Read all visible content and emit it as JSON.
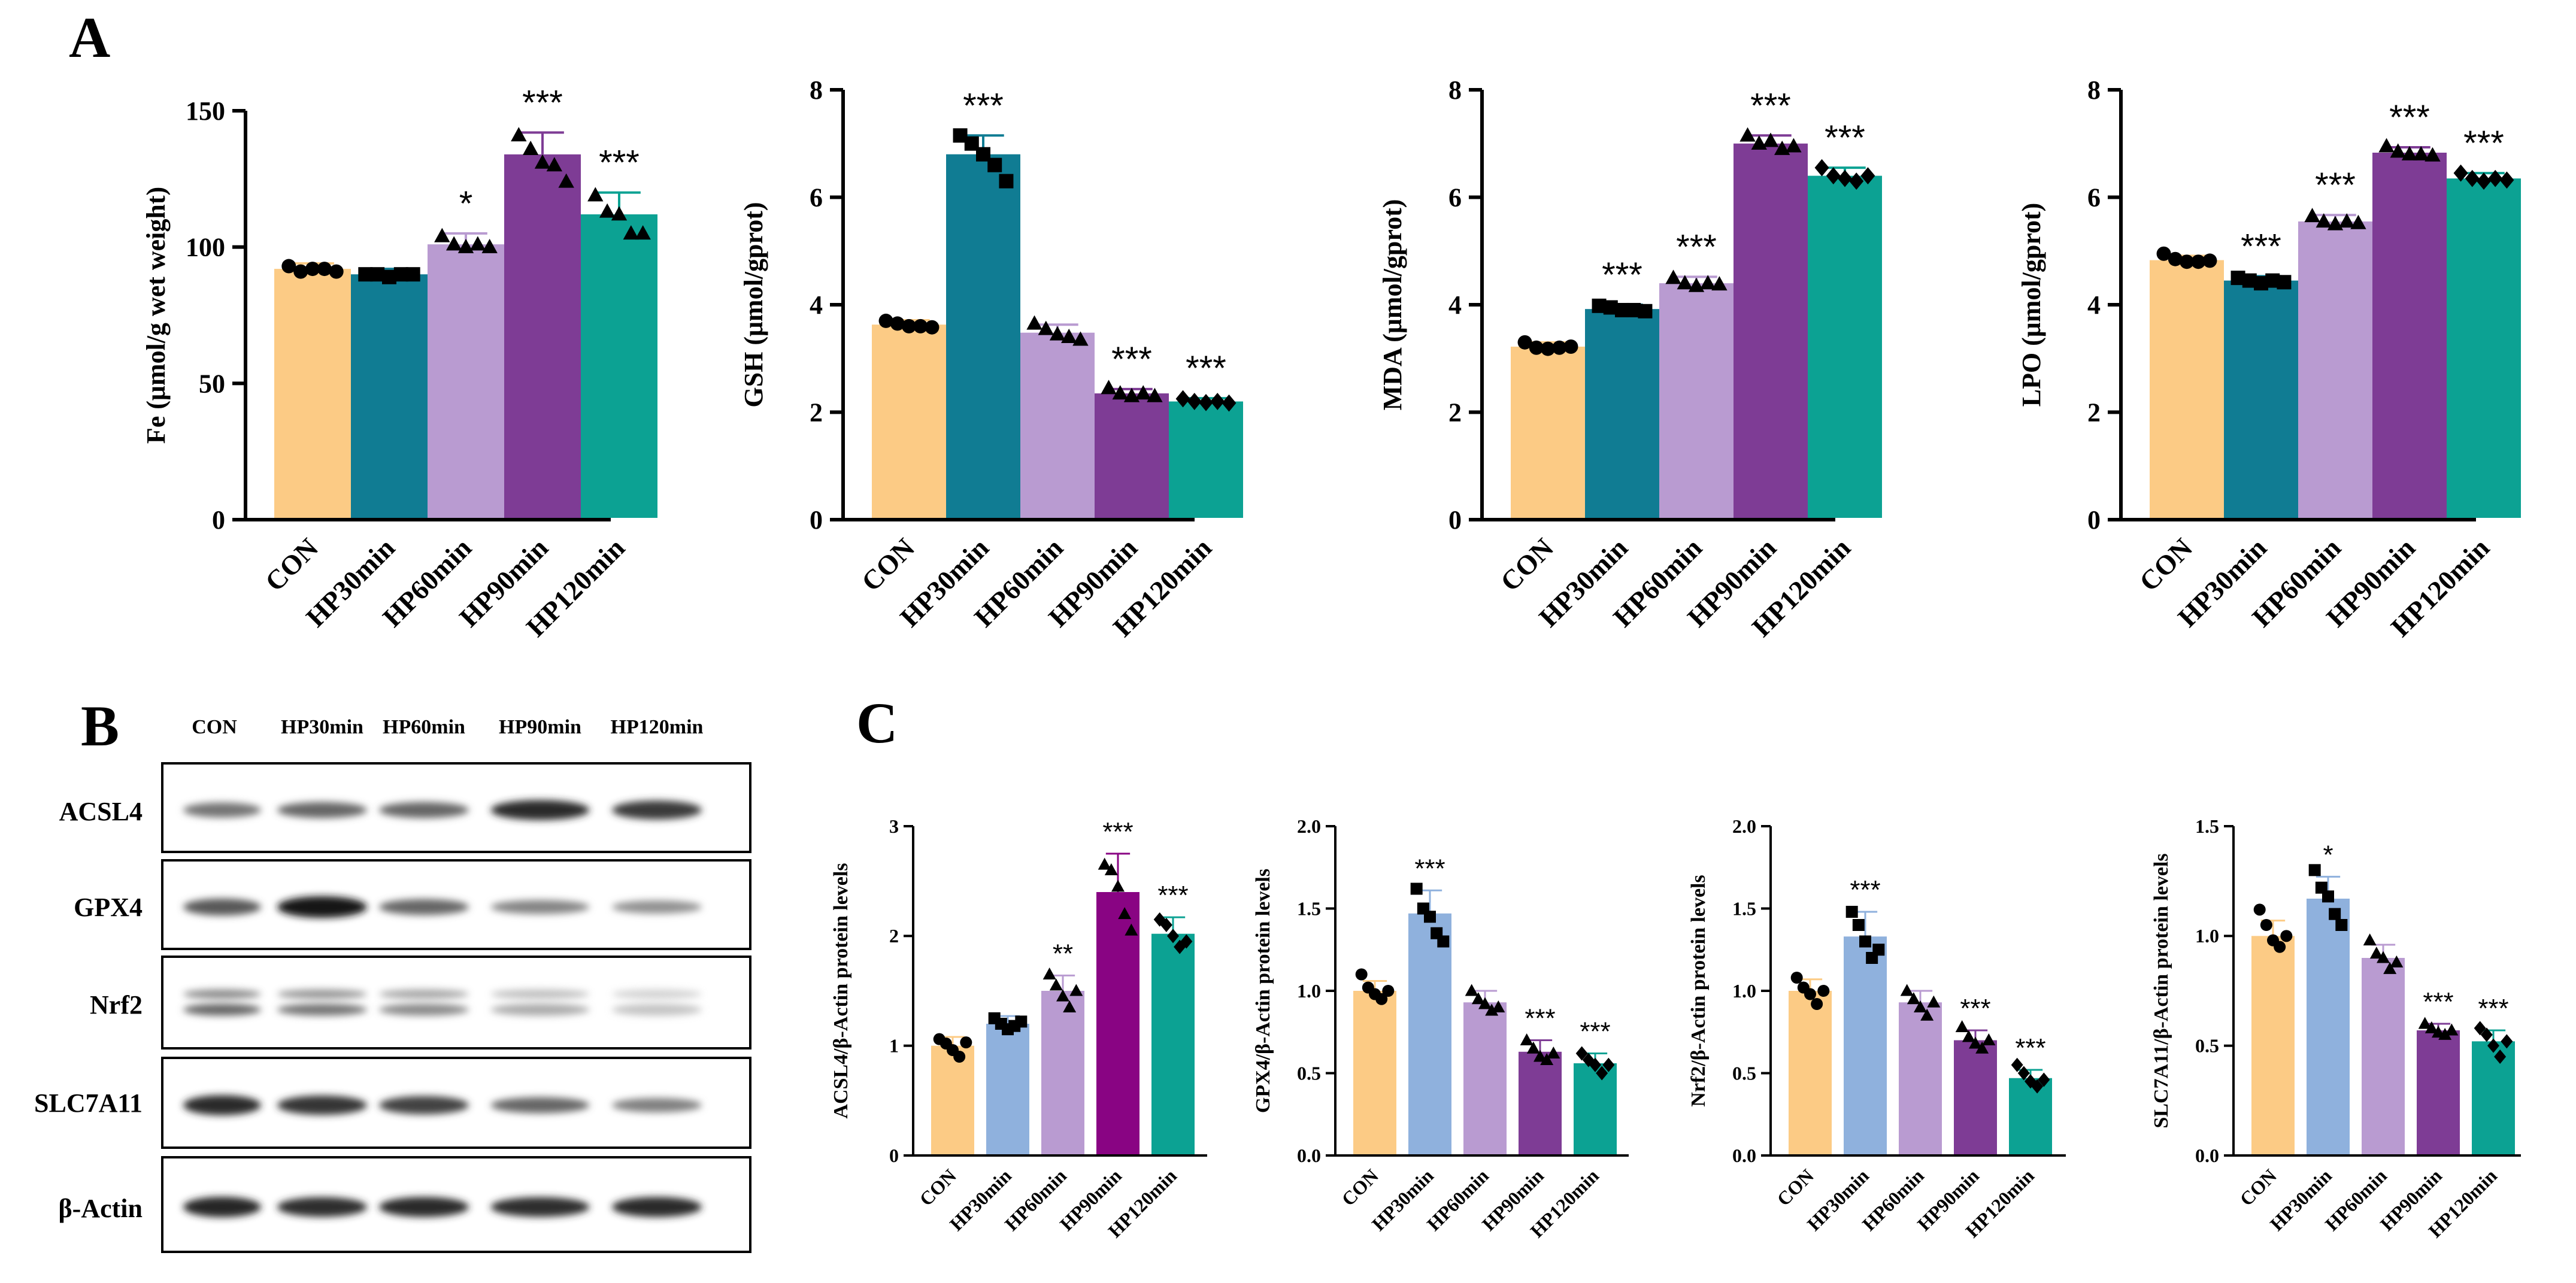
{
  "panels": {
    "A": "A",
    "B": "B",
    "C": "C"
  },
  "blot": {
    "lane_labels": [
      "CON",
      "HP30min",
      "HP60min",
      "HP90min",
      "HP120min"
    ],
    "rows": [
      {
        "label": "ACSL4",
        "intensities": [
          0.55,
          0.62,
          0.62,
          0.9,
          0.82
        ]
      },
      {
        "label": "GPX4",
        "intensities": [
          0.68,
          1.0,
          0.62,
          0.48,
          0.42
        ]
      },
      {
        "label": "Nrf2",
        "intensities": [
          0.62,
          0.55,
          0.45,
          0.3,
          0.18
        ]
      },
      {
        "label": "SLC7A11",
        "intensities": [
          0.9,
          0.85,
          0.78,
          0.62,
          0.5
        ]
      },
      {
        "label": "β-Actin",
        "intensities": [
          0.92,
          0.88,
          0.9,
          0.88,
          0.9
        ]
      }
    ]
  },
  "chart_data": [
    {
      "type": "bar",
      "panel": "A",
      "categories": [
        "CON",
        "HP30min",
        "HP60min",
        "HP90min",
        "HP120min"
      ],
      "values": [
        92,
        90,
        101,
        134,
        112
      ],
      "errors": [
        2,
        2,
        4,
        8,
        8
      ],
      "significance": [
        "",
        "",
        "*",
        "***",
        "***"
      ],
      "points": [
        [
          93,
          91,
          92,
          92,
          91
        ],
        [
          90,
          90,
          89,
          90,
          90
        ],
        [
          104,
          101,
          100,
          101,
          100
        ],
        [
          141,
          136,
          131,
          130,
          124
        ],
        [
          119,
          113,
          112,
          105,
          105
        ]
      ],
      "markers": [
        "circle",
        "square",
        "triangle",
        "triangle",
        "triangle"
      ],
      "ylabel": "Fe (μmol/g wet weight)",
      "ylim": [
        0,
        150
      ],
      "yticks": [
        0,
        50,
        100,
        150
      ],
      "style": "large"
    },
    {
      "type": "bar",
      "panel": "A",
      "categories": [
        "CON",
        "HP30min",
        "HP60min",
        "HP90min",
        "HP120min"
      ],
      "values": [
        3.63,
        6.8,
        3.48,
        2.35,
        2.2
      ],
      "errors": [
        0.08,
        0.35,
        0.15,
        0.08,
        0.06
      ],
      "significance": [
        "",
        "***",
        "",
        "***",
        "***"
      ],
      "points": [
        [
          3.7,
          3.65,
          3.6,
          3.6,
          3.58
        ],
        [
          7.15,
          7.0,
          6.8,
          6.6,
          6.3
        ],
        [
          3.65,
          3.55,
          3.45,
          3.4,
          3.35
        ],
        [
          2.45,
          2.35,
          2.3,
          2.35,
          2.3
        ],
        [
          2.25,
          2.2,
          2.18,
          2.2,
          2.17
        ]
      ],
      "markers": [
        "circle",
        "square",
        "triangle",
        "triangle",
        "diamond"
      ],
      "ylabel": "GSH (μmol/gprot)",
      "ylim": [
        0,
        8
      ],
      "yticks": [
        0,
        2,
        4,
        6,
        8
      ],
      "style": "large"
    },
    {
      "type": "bar",
      "panel": "A",
      "categories": [
        "CON",
        "HP30min",
        "HP60min",
        "HP90min",
        "HP120min"
      ],
      "values": [
        3.22,
        3.92,
        4.4,
        7.0,
        6.4
      ],
      "errors": [
        0.08,
        0.08,
        0.12,
        0.15,
        0.15
      ],
      "significance": [
        "",
        "***",
        "***",
        "***",
        "***"
      ],
      "points": [
        [
          3.3,
          3.2,
          3.18,
          3.2,
          3.22
        ],
        [
          3.98,
          3.95,
          3.9,
          3.9,
          3.88
        ],
        [
          4.5,
          4.4,
          4.35,
          4.4,
          4.38
        ],
        [
          7.15,
          7.0,
          7.05,
          6.9,
          6.95
        ],
        [
          6.55,
          6.4,
          6.35,
          6.3,
          6.4
        ]
      ],
      "markers": [
        "circle",
        "square",
        "triangle",
        "triangle",
        "diamond"
      ],
      "ylabel": "MDA (μmol/gprot)",
      "ylim": [
        0,
        8
      ],
      "yticks": [
        0,
        2,
        4,
        6,
        8
      ],
      "style": "large"
    },
    {
      "type": "bar",
      "panel": "A",
      "categories": [
        "CON",
        "HP30min",
        "HP60min",
        "HP90min",
        "HP120min"
      ],
      "values": [
        4.83,
        4.45,
        5.55,
        6.83,
        6.35
      ],
      "errors": [
        0.08,
        0.08,
        0.12,
        0.1,
        0.1
      ],
      "significance": [
        "",
        "***",
        "***",
        "***",
        "***"
      ],
      "points": [
        [
          4.95,
          4.85,
          4.8,
          4.8,
          4.82
        ],
        [
          4.5,
          4.45,
          4.4,
          4.45,
          4.42
        ],
        [
          5.65,
          5.55,
          5.5,
          5.55,
          5.52
        ],
        [
          6.95,
          6.85,
          6.8,
          6.8,
          6.78
        ],
        [
          6.45,
          6.35,
          6.3,
          6.35,
          6.32
        ]
      ],
      "markers": [
        "circle",
        "square",
        "triangle",
        "triangle",
        "diamond"
      ],
      "ylabel": "LPO (μmol/gprot)",
      "ylim": [
        0,
        8
      ],
      "yticks": [
        0,
        2,
        4,
        6,
        8
      ],
      "style": "large"
    },
    {
      "type": "bar",
      "panel": "C",
      "categories": [
        "CON",
        "HP30min",
        "HP60min",
        "HP90min",
        "HP120min"
      ],
      "values": [
        1.0,
        1.2,
        1.5,
        2.4,
        2.02
      ],
      "errors": [
        0.08,
        0.07,
        0.14,
        0.35,
        0.15
      ],
      "significance": [
        "",
        "",
        "**",
        "***",
        "***"
      ],
      "points": [
        [
          1.06,
          1.02,
          0.96,
          0.9,
          1.03
        ],
        [
          1.25,
          1.2,
          1.15,
          1.18,
          1.22
        ],
        [
          1.65,
          1.55,
          1.45,
          1.35,
          1.5
        ],
        [
          2.65,
          2.6,
          2.45,
          2.2,
          2.05
        ],
        [
          2.15,
          2.1,
          2.0,
          1.9,
          1.95
        ]
      ],
      "markers": [
        "circle",
        "square",
        "triangle",
        "triangle",
        "diamond"
      ],
      "ylabel": "ACSL4/β-Actin protein levels",
      "ylim": [
        0,
        3
      ],
      "yticks": [
        "0",
        "1",
        "2",
        "3"
      ],
      "style": "small"
    },
    {
      "type": "bar",
      "panel": "C",
      "categories": [
        "CON",
        "HP30min",
        "HP60min",
        "HP90min",
        "HP120min"
      ],
      "values": [
        1.0,
        1.47,
        0.93,
        0.63,
        0.56
      ],
      "errors": [
        0.06,
        0.14,
        0.07,
        0.07,
        0.06
      ],
      "significance": [
        "",
        "***",
        "",
        "***",
        "***"
      ],
      "points": [
        [
          1.1,
          1.02,
          0.98,
          0.95,
          1.0
        ],
        [
          1.62,
          1.5,
          1.45,
          1.35,
          1.3
        ],
        [
          1.0,
          0.95,
          0.92,
          0.88,
          0.9
        ],
        [
          0.7,
          0.65,
          0.6,
          0.58,
          0.62
        ],
        [
          0.62,
          0.58,
          0.55,
          0.5,
          0.55
        ]
      ],
      "markers": [
        "circle",
        "square",
        "triangle",
        "triangle",
        "diamond"
      ],
      "ylabel": "GPX4/β-Actin protein levels",
      "ylim": [
        0,
        2
      ],
      "yticks": [
        "0.0",
        "0.5",
        "1.0",
        "1.5",
        "2.0"
      ],
      "style": "small"
    },
    {
      "type": "bar",
      "panel": "C",
      "categories": [
        "CON",
        "HP30min",
        "HP60min",
        "HP90min",
        "HP120min"
      ],
      "values": [
        1.0,
        1.33,
        0.93,
        0.7,
        0.47
      ],
      "errors": [
        0.07,
        0.15,
        0.07,
        0.06,
        0.05
      ],
      "significance": [
        "",
        "***",
        "",
        "***",
        "***"
      ],
      "points": [
        [
          1.08,
          1.02,
          0.98,
          0.92,
          1.0
        ],
        [
          1.48,
          1.4,
          1.3,
          1.2,
          1.25
        ],
        [
          1.0,
          0.95,
          0.9,
          0.85,
          0.93
        ],
        [
          0.78,
          0.72,
          0.68,
          0.65,
          0.7
        ],
        [
          0.55,
          0.5,
          0.45,
          0.42,
          0.46
        ]
      ],
      "markers": [
        "circle",
        "square",
        "triangle",
        "triangle",
        "diamond"
      ],
      "ylabel": "Nrf2/β-Actin protein levels",
      "ylim": [
        0,
        2
      ],
      "yticks": [
        "0.0",
        "0.5",
        "1.0",
        "1.5",
        "2.0"
      ],
      "style": "small"
    },
    {
      "type": "bar",
      "panel": "C",
      "categories": [
        "CON",
        "HP30min",
        "HP60min",
        "HP90min",
        "HP120min"
      ],
      "values": [
        1.0,
        1.17,
        0.9,
        0.57,
        0.52
      ],
      "errors": [
        0.07,
        0.1,
        0.06,
        0.03,
        0.05
      ],
      "significance": [
        "",
        "*",
        "",
        "***",
        "***"
      ],
      "points": [
        [
          1.12,
          1.05,
          0.98,
          0.95,
          1.0
        ],
        [
          1.3,
          1.22,
          1.18,
          1.1,
          1.05
        ],
        [
          0.98,
          0.92,
          0.9,
          0.85,
          0.88
        ],
        [
          0.6,
          0.58,
          0.56,
          0.55,
          0.57
        ],
        [
          0.58,
          0.55,
          0.5,
          0.45,
          0.52
        ]
      ],
      "markers": [
        "circle",
        "square",
        "triangle",
        "triangle",
        "diamond"
      ],
      "ylabel": "SLC7A11/β-Actin protein levels",
      "ylim": [
        0,
        1.5
      ],
      "yticks": [
        "0.0",
        "0.5",
        "1.0",
        "1.5"
      ],
      "style": "small"
    }
  ],
  "colors": {
    "A": [
      "#FCCB85",
      "#107C93",
      "#B99BD1",
      "#7E3C95",
      "#0CA293"
    ],
    "C": [
      "#FCCB85",
      "#8FB1DD",
      "#B99BD1",
      "#7E3C95",
      "#0CA293"
    ],
    "C_ACSL4": [
      "#FCCB85",
      "#8FB1DD",
      "#B99BD1",
      "#890483",
      "#0CA293"
    ]
  }
}
